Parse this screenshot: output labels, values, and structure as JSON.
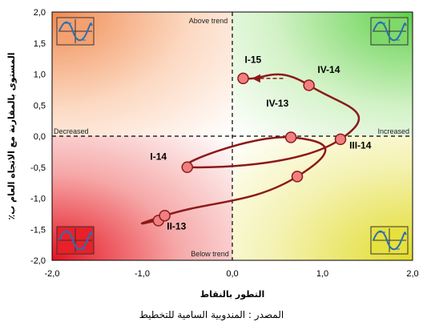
{
  "chart_data": {
    "type": "scatter",
    "title": "",
    "xlabel": "التطور بالنقاط",
    "ylabel": "المستوى بالمقارنة مع الاتجاه العام ب٪",
    "xlim": [
      -2.0,
      2.0
    ],
    "ylim": [
      -2.0,
      2.0
    ],
    "x_ticks": [
      "-2,0",
      "-1,0",
      "0,0",
      "1,0",
      "2,0"
    ],
    "y_ticks": [
      "2,0",
      "1,5",
      "1,0",
      "0,5",
      "0,0",
      "-0,5",
      "-1,0",
      "-1,5",
      "-2,0"
    ],
    "grid": false,
    "quadrant_labels": {
      "top": "Above trend",
      "bottom": "Below trend",
      "left": "Decreased",
      "right": "Increased"
    },
    "quadrant_colors": {
      "top_left": "#f4a070",
      "top_right": "#7fd86a",
      "bottom_left": "#e8202a",
      "bottom_right": "#e6e040"
    },
    "series": [
      {
        "color": "#8b1a1a",
        "marker_color": "#f08080",
        "points": [
          {
            "x": -0.82,
            "y": -1.36
          },
          {
            "x": -0.75,
            "y": -1.28
          },
          {
            "x": 0.72,
            "y": -0.65
          },
          {
            "x": 0.65,
            "y": -0.02
          },
          {
            "x": -0.5,
            "y": -0.5
          },
          {
            "x": 1.2,
            "y": -0.05
          },
          {
            "x": 0.85,
            "y": 0.82
          },
          {
            "x": 0.12,
            "y": 0.93
          }
        ]
      }
    ],
    "point_labels": [
      {
        "text": "II-13",
        "x": -0.62,
        "y": -1.5
      },
      {
        "text": "I-14",
        "x": -0.82,
        "y": -0.38
      },
      {
        "text": "IV-13",
        "x": 0.5,
        "y": 0.48
      },
      {
        "text": "III-14",
        "x": 1.42,
        "y": -0.2
      },
      {
        "text": "IV-14",
        "x": 1.07,
        "y": 1.02
      },
      {
        "text": "I-15",
        "x": 0.23,
        "y": 1.18
      }
    ],
    "source": "المصدر : المندوبية السامية للتخطيط"
  }
}
